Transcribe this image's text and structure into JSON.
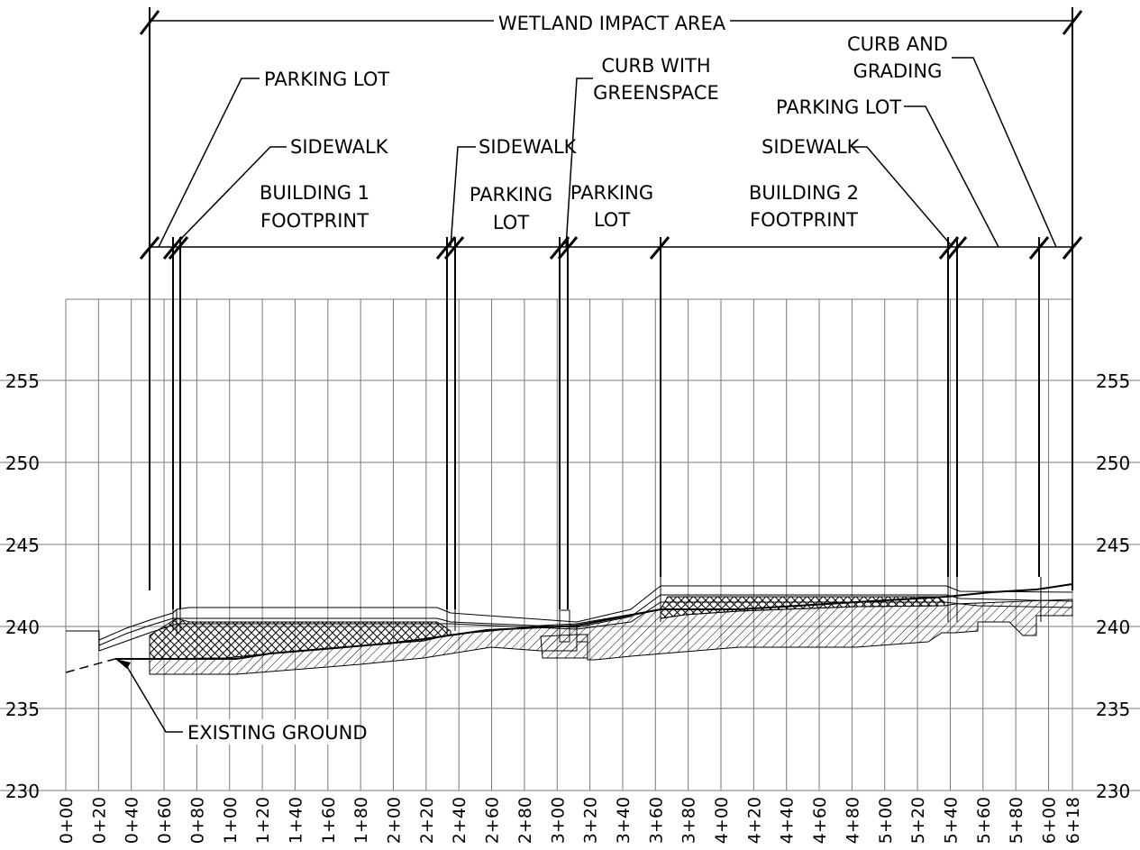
{
  "title": "WETLAND IMPACT AREA",
  "labels": {
    "parking_lot_1": "PARKING LOT",
    "sidewalk_1": "SIDEWALK",
    "building_1_line1": "BUILDING 1",
    "building_1_line2": "FOOTPRINT",
    "sidewalk_2": "SIDEWALK",
    "parking_lot_2_line1": "PARKING",
    "parking_lot_2_line2": "LOT",
    "curb_greenspace_line1": "CURB WITH",
    "curb_greenspace_line2": "GREENSPACE",
    "parking_lot_3_line1": "PARKING",
    "parking_lot_3_line2": "LOT",
    "building_2_line1": "BUILDING 2",
    "building_2_line2": "FOOTPRINT",
    "sidewalk_3": "SIDEWALK",
    "parking_lot_4": "PARKING LOT",
    "curb_grading_line1": "CURB AND",
    "curb_grading_line2": "GRADING",
    "existing_ground": "EXISTING GROUND"
  },
  "elevations": [
    "230",
    "235",
    "240",
    "245",
    "250",
    "255"
  ],
  "stations": [
    "0+00",
    "0+20",
    "0+40",
    "0+60",
    "0+80",
    "1+00",
    "1+20",
    "1+40",
    "1+60",
    "1+80",
    "2+00",
    "2+20",
    "2+40",
    "2+60",
    "2+80",
    "3+00",
    "3+20",
    "3+40",
    "3+60",
    "3+80",
    "4+00",
    "4+20",
    "4+40",
    "4+60",
    "4+80",
    "5+00",
    "5+20",
    "5+40",
    "5+60",
    "5+80",
    "6+00",
    "6+18"
  ],
  "colors": {
    "ink": "#000000",
    "grid": "#7a7a7a"
  }
}
